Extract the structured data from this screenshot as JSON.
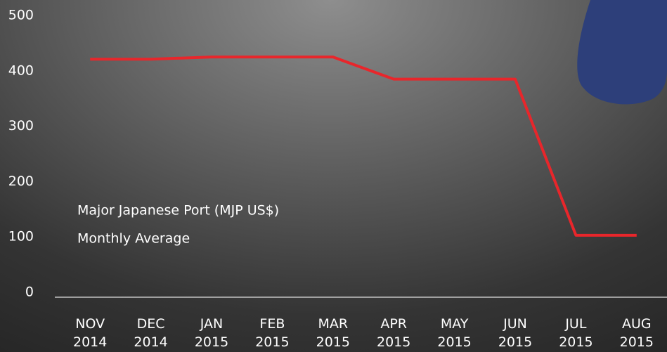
{
  "chart_data": {
    "type": "line",
    "annotations": [
      "Major Japanese Port (MJP US$)",
      "Monthly Average"
    ],
    "categories": [
      "NOV 2014",
      "DEC 2014",
      "JAN 2015",
      "FEB 2015",
      "MAR 2015",
      "APR 2015",
      "MAY 2015",
      "JUN 2015",
      "JUL 2015",
      "AUG 2015"
    ],
    "values": [
      421,
      421,
      425,
      425,
      425,
      385,
      385,
      385,
      103,
      103
    ],
    "color": "#e8262b",
    "ylim": [
      0,
      500
    ],
    "yticks": [
      0,
      100,
      200,
      300,
      400,
      500
    ],
    "grid": false
  }
}
